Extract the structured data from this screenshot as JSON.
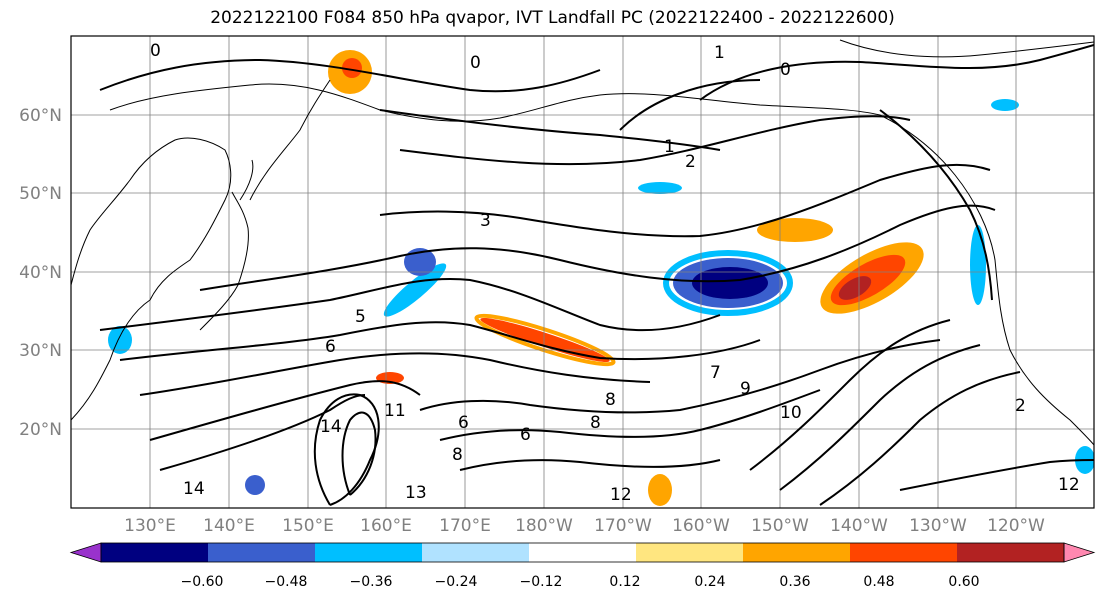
{
  "title": "2022122100 F084 850 hPa qvapor, IVT Landfall PC (2022122400 - 2022122600)",
  "lat_labels": [
    "60°N",
    "50°N",
    "40°N",
    "30°N",
    "20°N"
  ],
  "lon_labels": [
    "130°E",
    "140°E",
    "150°E",
    "160°E",
    "170°E",
    "180°W",
    "170°W",
    "160°W",
    "150°W",
    "140°W",
    "130°W",
    "120°W"
  ],
  "contour_labels": [
    "0",
    "0",
    "0",
    "1",
    "1",
    "2",
    "2",
    "3",
    "5",
    "6",
    "7",
    "9",
    "10",
    "11",
    "12",
    "12",
    "13",
    "14",
    "14",
    "6",
    "6",
    "8",
    "8",
    "8"
  ],
  "colorbar": {
    "ticks": [
      "−0.60",
      "−0.48",
      "−0.36",
      "−0.24",
      "−0.12",
      "0.12",
      "0.24",
      "0.36",
      "0.48",
      "0.60"
    ],
    "colors": [
      "#9932cc",
      "#000080",
      "#3a5fcd",
      "#00bfff",
      "#b0e2ff",
      "#ffffff",
      "#ffe680",
      "#ffa500",
      "#ff4500",
      "#b22222",
      "#ff88b0"
    ]
  }
}
